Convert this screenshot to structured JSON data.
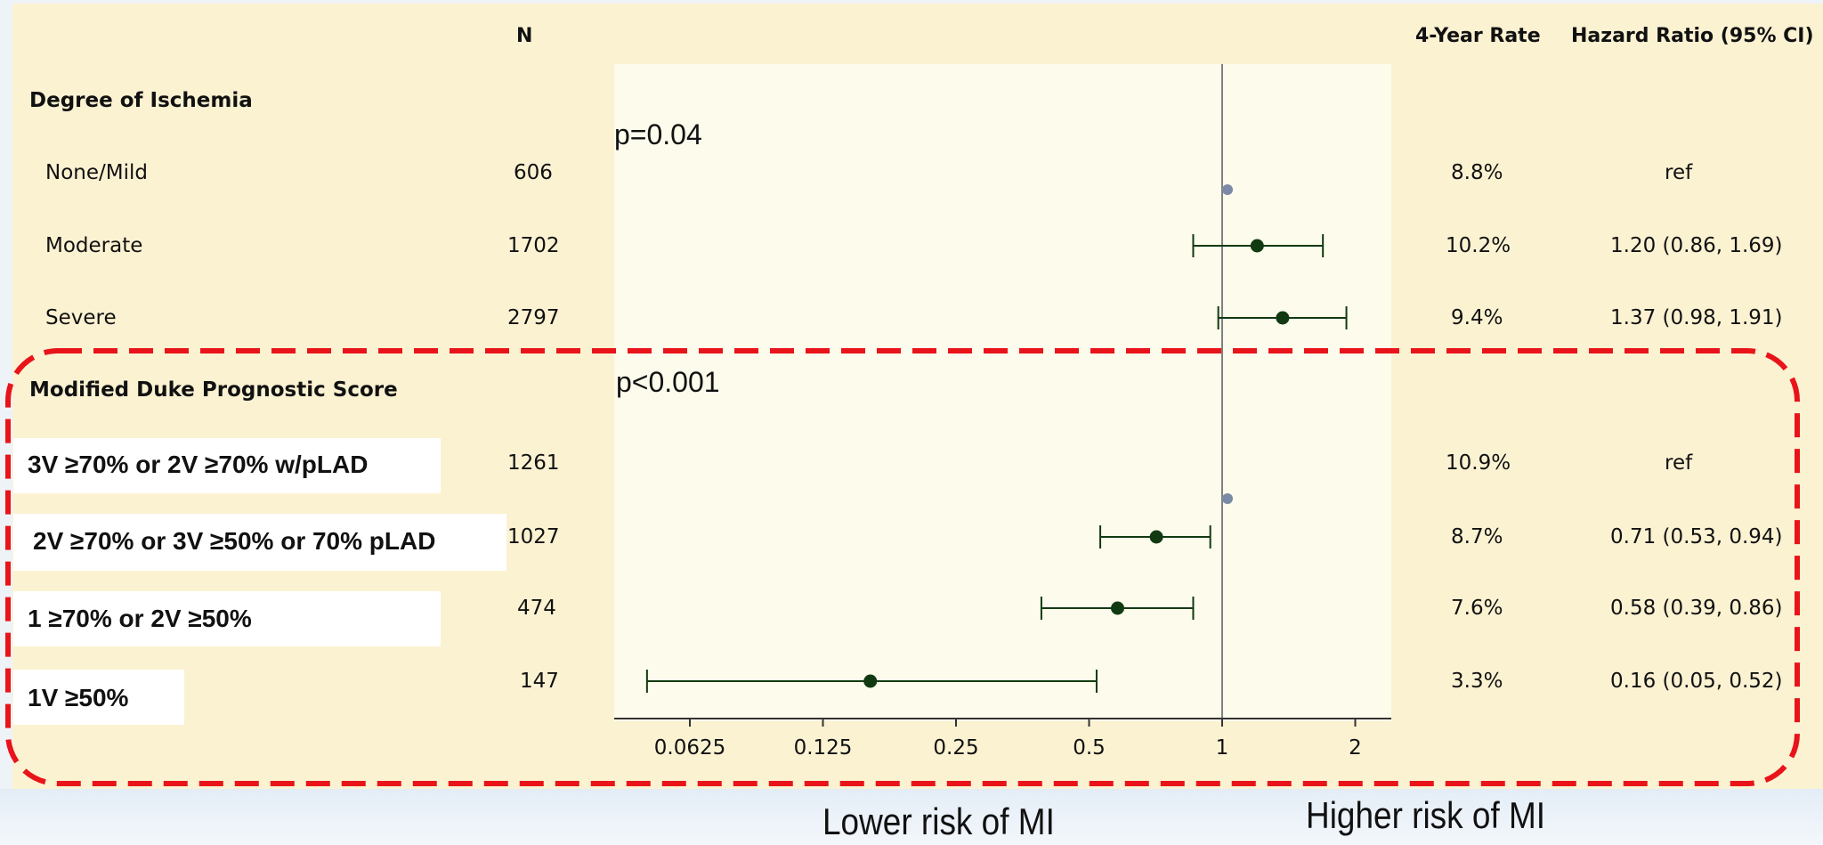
{
  "headers": {
    "n": "N",
    "rate": "4-Year Rate",
    "hr": "Hazard Ratio (95% CI)"
  },
  "sections": [
    {
      "title": "Degree of Ischemia",
      "p_value": "p=0.04",
      "rows": [
        {
          "label": "None/Mild",
          "n": "606",
          "rate": "8.8%",
          "hr_text": "ref"
        },
        {
          "label": "Moderate",
          "n": "1702",
          "rate": "10.2%",
          "hr_text": "1.20 (0.86, 1.69)"
        },
        {
          "label": "Severe",
          "n": "2797",
          "rate": "9.4%",
          "hr_text": "1.37 (0.98, 1.91)"
        }
      ]
    },
    {
      "title": "Modified Duke Prognostic Score",
      "p_value": "p<0.001",
      "rows": [
        {
          "label": "3V ≥70% or 2V ≥70% w/pLAD",
          "n": "1261",
          "rate": "10.9%",
          "hr_text": "ref"
        },
        {
          "label": "2V ≥70% or 3V ≥50% or 70% pLAD",
          "n": "1027",
          "rate": "8.7%",
          "hr_text": "0.71 (0.53, 0.94)"
        },
        {
          "label": "1 ≥70% or 2V ≥50%",
          "n": "474",
          "rate": "7.6%",
          "hr_text": "0.58 (0.39, 0.86)"
        },
        {
          "label": "1V ≥50%",
          "n": "147",
          "rate": "3.3%",
          "hr_text": "0.16 (0.05, 0.52)"
        }
      ]
    }
  ],
  "risk_labels": {
    "lower": "Lower risk of MI",
    "higher": "Higher risk of MI"
  },
  "colors": {
    "panel": "#fbf2d2",
    "plot": "#fdfbeb",
    "point": "#123a12",
    "ref_point": "#7a8aa6",
    "highlight": "#e8141a",
    "refline": "#808080"
  },
  "chart_data": {
    "type": "scatter",
    "subtype": "forest-plot",
    "x_scale": "log2",
    "x_ticks": [
      0.0625,
      0.125,
      0.25,
      0.5,
      1,
      2
    ],
    "x_tick_labels": [
      "0.0625",
      "0.125",
      "0.25",
      "0.5",
      "1",
      "2"
    ],
    "reference_line": 1,
    "points": [
      {
        "label": "None/Mild",
        "hr": 1.0,
        "lo": null,
        "hi": null,
        "ref": true
      },
      {
        "label": "Moderate",
        "hr": 1.2,
        "lo": 0.86,
        "hi": 1.69,
        "ref": false
      },
      {
        "label": "Severe",
        "hr": 1.37,
        "lo": 0.98,
        "hi": 1.91,
        "ref": false
      },
      {
        "label": "3V ≥70% or 2V ≥70% w/pLAD",
        "hr": 1.0,
        "lo": null,
        "hi": null,
        "ref": true
      },
      {
        "label": "2V ≥70% or 3V ≥50% or 70% pLAD",
        "hr": 0.71,
        "lo": 0.53,
        "hi": 0.94,
        "ref": false
      },
      {
        "label": "1 ≥70% or 2V ≥50%",
        "hr": 0.58,
        "lo": 0.39,
        "hi": 0.86,
        "ref": false
      },
      {
        "label": "1V ≥50%",
        "hr": 0.16,
        "lo": 0.05,
        "hi": 0.52,
        "ref": false
      }
    ]
  }
}
